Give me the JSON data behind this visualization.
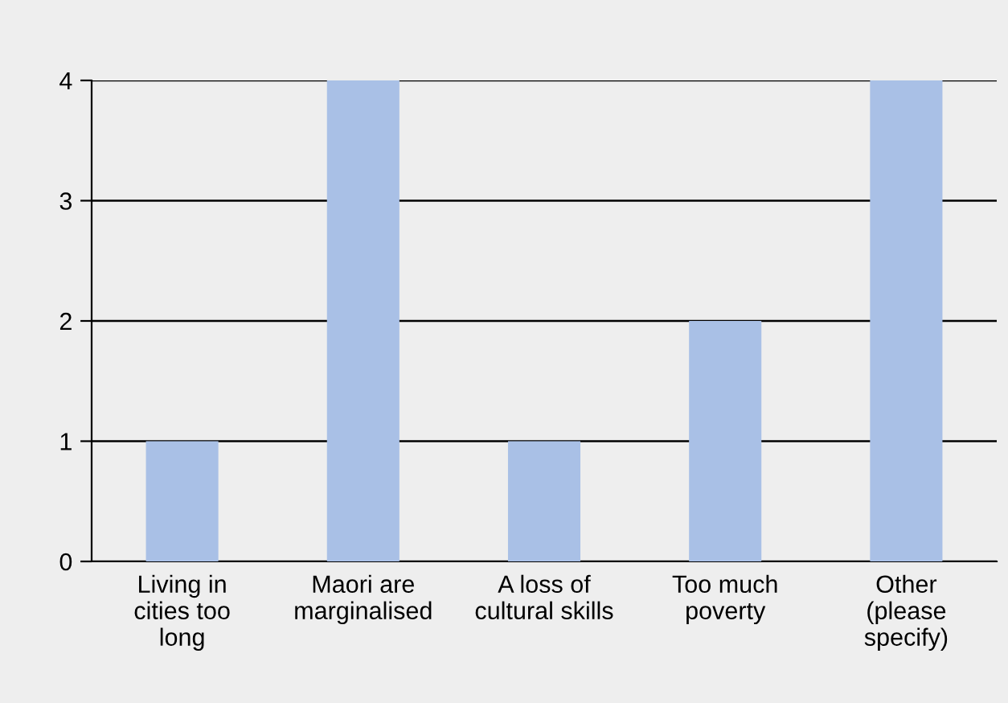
{
  "chart_data": {
    "type": "bar",
    "categories": [
      "Living in\ncities too\nlong",
      "Maori are\nmarginalised",
      "A loss of\ncultural skills",
      "Too much\npoverty",
      "Other\n(please\nspecify)"
    ],
    "values": [
      1,
      4,
      1,
      2,
      4
    ],
    "color": "#a9c0e6",
    "ylim": [
      0,
      4
    ],
    "yticks": [
      0,
      1,
      2,
      3,
      4
    ],
    "grid": "y",
    "legend": false
  }
}
